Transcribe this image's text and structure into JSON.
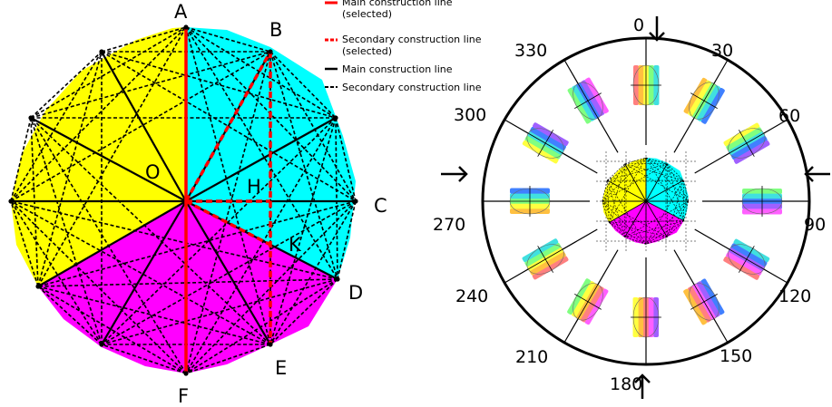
{
  "left_diagram": {
    "points": [
      "A",
      "B",
      "C",
      "D",
      "E",
      "F",
      "O",
      "H",
      "K"
    ],
    "colors": {
      "yellow": "#ffff00",
      "cyan": "#00ffff",
      "magenta": "#ff00ff",
      "selected": "#ff0000",
      "line": "#000000"
    }
  },
  "legend": {
    "main_selected": [
      "Main construction line",
      "(selected)"
    ],
    "secondary_selected": [
      "Secondary construction line",
      "(selected)"
    ],
    "main": "Main construction line",
    "secondary": "Secondary construction line"
  },
  "dial": {
    "angle_labels": [
      "0",
      "30",
      "60",
      "90",
      "120",
      "150",
      "180",
      "210",
      "240",
      "270",
      "300",
      "330"
    ],
    "petal_colors": [
      "#ff8080",
      "#ffc040",
      "#ffff40",
      "#80ff80",
      "#40e0e0",
      "#4080ff",
      "#a060ff",
      "#ff60ff"
    ]
  }
}
